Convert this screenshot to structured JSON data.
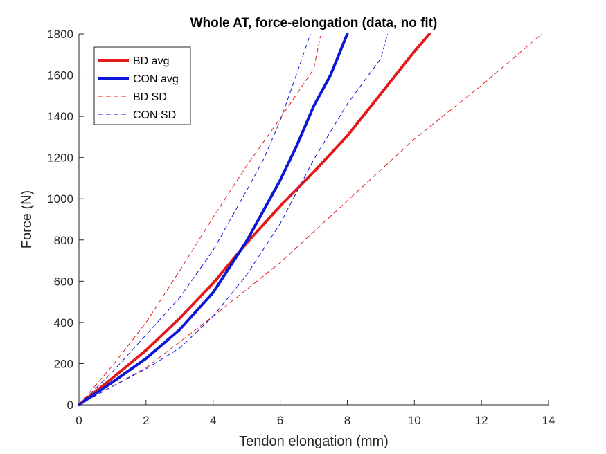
{
  "chart_data": {
    "type": "line",
    "title": "Whole AT, force-elongation (data, no fit)",
    "xlabel": "Tendon elongation (mm)",
    "ylabel": "Force (N)",
    "xlim": [
      0,
      14
    ],
    "ylim": [
      0,
      1800
    ],
    "xticks": [
      0,
      2,
      4,
      6,
      8,
      10,
      12,
      14
    ],
    "yticks": [
      0,
      200,
      400,
      600,
      800,
      1000,
      1200,
      1400,
      1600,
      1800
    ],
    "grid": false,
    "legend_position": "top-left",
    "series": [
      {
        "name": "BD avg",
        "color": "#e31a1c",
        "style": "solid",
        "x": [
          0,
          1,
          2,
          3,
          4,
          5,
          6,
          7,
          8,
          9,
          10,
          10.45
        ],
        "y": [
          0,
          130,
          265,
          420,
          590,
          785,
          965,
          1130,
          1305,
          1510,
          1715,
          1800
        ]
      },
      {
        "name": "CON avg",
        "color": "#0b16d8",
        "style": "solid",
        "x": [
          0,
          1,
          2,
          3,
          4,
          5,
          6,
          6.5,
          7,
          7.5,
          8
        ],
        "y": [
          0,
          110,
          225,
          365,
          545,
          795,
          1090,
          1260,
          1450,
          1600,
          1800
        ]
      },
      {
        "name": "BD SD",
        "color": "#e31a1c",
        "style": "dashed",
        "x": [
          0,
          1,
          2,
          3,
          4,
          5,
          6,
          7,
          7.2
        ],
        "y": [
          0,
          190,
          400,
          650,
          910,
          1160,
          1390,
          1630,
          1790
        ]
      },
      {
        "name": "BD SD",
        "color": "#e31a1c",
        "style": "dashed",
        "show_in_legend": false,
        "x": [
          0,
          2,
          4,
          6,
          8,
          10,
          12,
          13.8
        ],
        "y": [
          0,
          180,
          430,
          690,
          990,
          1290,
          1550,
          1800
        ]
      },
      {
        "name": "CON SD",
        "color": "#0b16d8",
        "style": "dashed",
        "x": [
          0,
          1,
          2,
          3,
          4,
          5,
          5.5,
          6,
          6.5,
          6.9
        ],
        "y": [
          0,
          160,
          340,
          520,
          750,
          1040,
          1190,
          1380,
          1610,
          1800
        ]
      },
      {
        "name": "CON SD",
        "color": "#0b16d8",
        "style": "dashed",
        "show_in_legend": false,
        "x": [
          0,
          1,
          2,
          3,
          4,
          5,
          6,
          7,
          8,
          9,
          9.2
        ],
        "y": [
          0,
          90,
          175,
          275,
          430,
          630,
          880,
          1190,
          1460,
          1680,
          1800
        ]
      }
    ]
  }
}
